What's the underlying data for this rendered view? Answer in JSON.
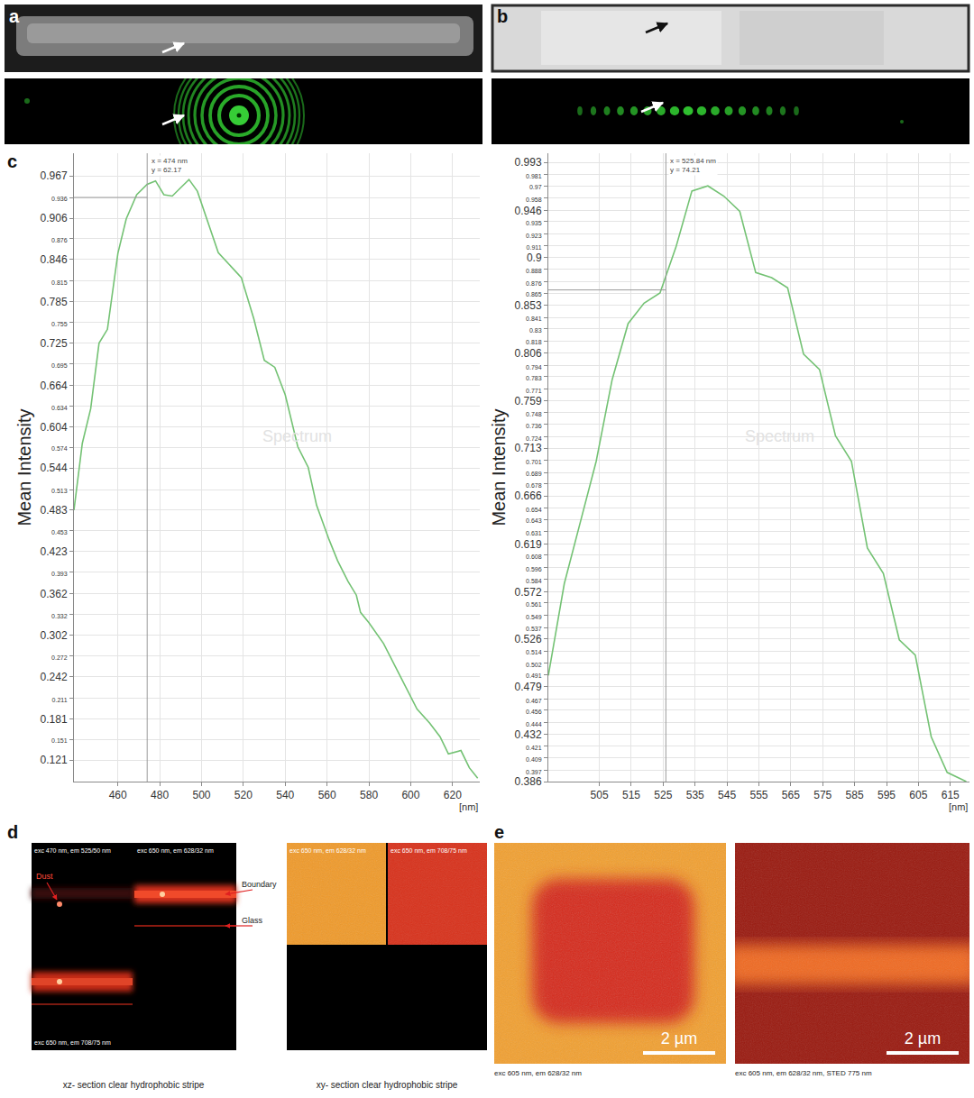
{
  "chart_data": [
    {
      "type": "line",
      "color": "#74c274",
      "grid": true,
      "x_label": "[nm]",
      "y_label": "Mean Intensity",
      "x": [
        439,
        443,
        447,
        451,
        455,
        460,
        464,
        469,
        474,
        478,
        482,
        486,
        490,
        494,
        498,
        502,
        508,
        519,
        525,
        530,
        535,
        540,
        546,
        551,
        555,
        561,
        565,
        570,
        574,
        576,
        580,
        587,
        593,
        598,
        603,
        609,
        614,
        618,
        624,
        628,
        632
      ],
      "values": [
        0.483,
        0.58,
        0.63,
        0.725,
        0.745,
        0.855,
        0.905,
        0.94,
        0.955,
        0.96,
        0.94,
        0.938,
        0.95,
        0.962,
        0.945,
        0.91,
        0.856,
        0.82,
        0.76,
        0.7,
        0.69,
        0.65,
        0.575,
        0.545,
        0.49,
        0.44,
        0.41,
        0.38,
        0.36,
        0.335,
        0.32,
        0.29,
        0.255,
        0.225,
        0.195,
        0.175,
        0.155,
        0.13,
        0.135,
        0.11,
        0.095
      ],
      "xlim": [
        439,
        633
      ],
      "ylim": [
        0.09,
        1.0
      ],
      "xticks": [
        460,
        480,
        500,
        520,
        540,
        560,
        580,
        600,
        620
      ],
      "yticks": [
        0.121,
        0.151,
        0.181,
        0.211,
        0.242,
        0.272,
        0.302,
        0.332,
        0.362,
        0.393,
        0.423,
        0.453,
        0.483,
        0.513,
        0.544,
        0.574,
        0.604,
        0.634,
        0.664,
        0.695,
        0.725,
        0.755,
        0.785,
        0.815,
        0.846,
        0.876,
        0.906,
        0.936,
        0.967
      ],
      "annotations": [
        {
          "x": 474,
          "y": 0.936,
          "text": [
            "x = 474 nm",
            "y = 62.17"
          ]
        },
        {
          "text": "Spectrum"
        }
      ]
    },
    {
      "type": "line",
      "color": "#74c274",
      "grid": true,
      "x_label": "[nm]",
      "y_label": "Mean Intensity",
      "x": [
        489,
        494,
        499,
        504,
        509,
        514,
        519,
        524,
        529,
        534,
        539,
        544,
        549,
        554,
        559,
        564,
        569,
        574,
        579,
        584,
        589,
        594,
        599,
        604,
        609,
        614,
        620
      ],
      "values": [
        0.49,
        0.58,
        0.64,
        0.7,
        0.78,
        0.835,
        0.855,
        0.865,
        0.91,
        0.965,
        0.97,
        0.96,
        0.945,
        0.885,
        0.88,
        0.87,
        0.805,
        0.79,
        0.725,
        0.7,
        0.615,
        0.59,
        0.525,
        0.51,
        0.43,
        0.395,
        0.386
      ],
      "xlim": [
        489,
        621
      ],
      "ylim": [
        0.386,
        1.002
      ],
      "xticks": [
        505,
        515,
        525,
        535,
        545,
        555,
        565,
        575,
        585,
        595,
        605,
        615
      ],
      "yticks": [
        0.386,
        0.397,
        0.409,
        0.421,
        0.432,
        0.444,
        0.456,
        0.467,
        0.479,
        0.491,
        0.502,
        0.514,
        0.526,
        0.537,
        0.549,
        0.561,
        0.572,
        0.584,
        0.596,
        0.608,
        0.619,
        0.631,
        0.643,
        0.654,
        0.666,
        0.678,
        0.689,
        0.701,
        0.713,
        0.724,
        0.736,
        0.748,
        0.759,
        0.771,
        0.783,
        0.794,
        0.806,
        0.818,
        0.83,
        0.841,
        0.853,
        0.865,
        0.876,
        0.888,
        0.9,
        0.911,
        0.923,
        0.935,
        0.946,
        0.958,
        0.97,
        0.981,
        0.993
      ],
      "annotations": [
        {
          "x": 525.84,
          "y": 0.868,
          "text": [
            "x = 525.84 nm",
            "y = 74.21"
          ]
        },
        {
          "text": "Spectrum"
        }
      ]
    }
  ],
  "figure": {
    "panel_letters": [
      "a",
      "b",
      "c",
      "d",
      "e"
    ],
    "xz_section": {
      "channels": [
        "exc 470 nm, em 525/50 nm",
        "exc 650 nm, em 628/32 nm",
        "exc 650 nm, em 708/75 nm"
      ],
      "labels": [
        "Dust",
        "Boundary",
        "Glass"
      ],
      "caption": "xz- section clear hydrophobic stripe"
    },
    "xy_section": {
      "channels": [
        "exc 650 nm, em 628/32 nm",
        "exc 650 nm, em 708/75 nm"
      ],
      "caption": "xy- section clear hydrophobic stripe"
    },
    "sted": [
      {
        "caption": "exc 605 nm, em 628/32 nm",
        "scale_bar": "2 µm"
      },
      {
        "caption": "exc 605 nm, em 628/32 nm, STED 775 nm",
        "scale_bar": "2 µm"
      }
    ]
  }
}
